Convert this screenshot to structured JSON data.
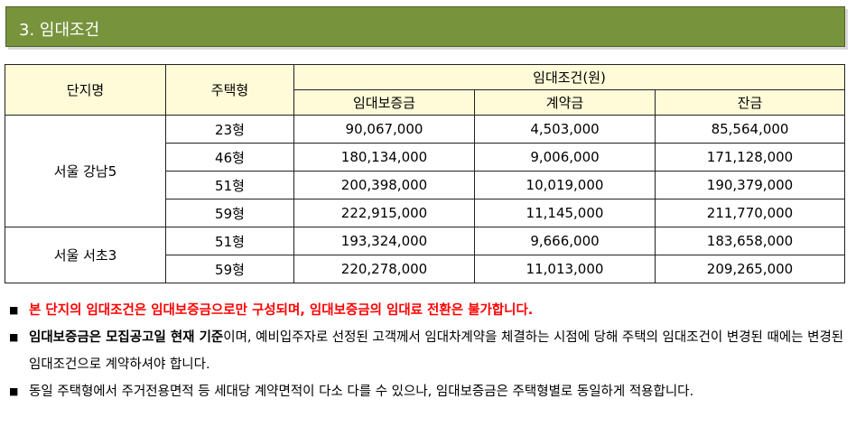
{
  "section": {
    "title": "3. 임대조건"
  },
  "table": {
    "headers": {
      "complex": "단지명",
      "type": "주택형",
      "conditions": "임대조건(원)",
      "deposit": "임대보증금",
      "contract": "계약금",
      "balance": "잔금"
    },
    "groups": [
      {
        "complex": "서울 강남5",
        "rows": [
          {
            "type": "23형",
            "deposit": "90,067,000",
            "contract": "4,503,000",
            "balance": "85,564,000"
          },
          {
            "type": "46형",
            "deposit": "180,134,000",
            "contract": "9,006,000",
            "balance": "171,128,000"
          },
          {
            "type": "51형",
            "deposit": "200,398,000",
            "contract": "10,019,000",
            "balance": "190,379,000"
          },
          {
            "type": "59형",
            "deposit": "222,915,000",
            "contract": "11,145,000",
            "balance": "211,770,000"
          }
        ]
      },
      {
        "complex": "서울 서초3",
        "rows": [
          {
            "type": "51형",
            "deposit": "193,324,000",
            "contract": "9,666,000",
            "balance": "183,658,000"
          },
          {
            "type": "59형",
            "deposit": "220,278,000",
            "contract": "11,013,000",
            "balance": "209,265,000"
          }
        ]
      }
    ]
  },
  "notes": {
    "bullet": "■",
    "n1": "본 단지의 임대조건은 임대보증금으로만 구성되며, 임대보증금의 임대료 전환은 불가합니다.",
    "n2_bold1": "임대보증금은 모집공고일 현재 기준",
    "n2_rest": "이며, 예비입주자로 선정된 고객께서 임대차계약을 체결하는 시점에 당해 주택의 임대조건이 변경된 때에는 변경된 임대조건으로 계약하셔야 합니다.",
    "n3": "동일 주택형에서 주거전용면적 등 세대당 계약면적이 다소 다를 수 있으나, 임대보증금은 주택형별로 동일하게 적용합니다."
  },
  "colors": {
    "header_bg": "#77933c",
    "table_header_bg": "#fffbd8",
    "warning": "#ff0000"
  }
}
